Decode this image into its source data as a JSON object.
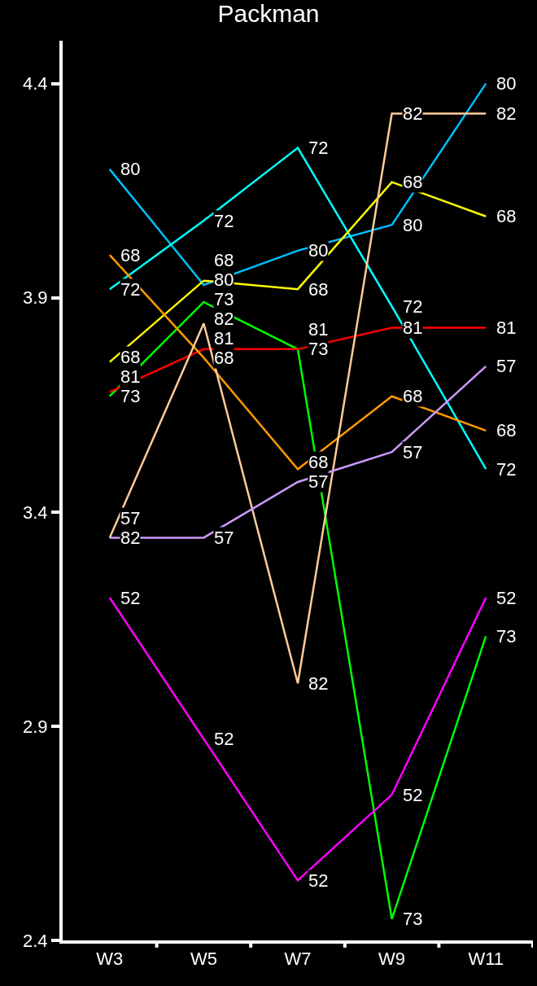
{
  "chart_data": {
    "type": "line",
    "title": "Packman",
    "categories": [
      "W3",
      "W5",
      "W7",
      "W9",
      "W11"
    ],
    "ylim": [
      2.4,
      4.5
    ],
    "yticks": [
      2.4,
      2.9,
      3.4,
      3.9,
      4.4
    ],
    "grid": false,
    "legend": false,
    "marker": "none",
    "line_style": "solid",
    "series": [
      {
        "name": "80",
        "color": "#00bfff",
        "values": [
          4.2,
          3.93,
          4.01,
          4.07,
          4.4
        ]
      },
      {
        "name": "72",
        "color": "#00ffff",
        "values": [
          3.92,
          4.08,
          4.25,
          3.88,
          3.5
        ]
      },
      {
        "name": "68",
        "color": "#ffff00",
        "values": [
          3.75,
          3.94,
          3.92,
          4.17,
          4.09
        ]
      },
      {
        "name": "73",
        "color": "#00ff00",
        "values": [
          3.67,
          3.89,
          3.78,
          2.45,
          3.11
        ]
      },
      {
        "name": "81",
        "color": "#ff0000",
        "values": [
          3.68,
          3.78,
          3.78,
          3.83,
          3.83
        ]
      },
      {
        "name": "68",
        "color": "#ff9900",
        "values": [
          4.0,
          3.76,
          3.5,
          3.67,
          3.59
        ]
      },
      {
        "name": "82",
        "color": "#ffcc99",
        "values": [
          3.34,
          3.84,
          3.0,
          4.33,
          4.33
        ]
      },
      {
        "name": "57",
        "color": "#cc99ff",
        "values": [
          3.34,
          3.34,
          3.47,
          3.54,
          3.74
        ]
      },
      {
        "name": "52",
        "color": "#ff00ff",
        "values": [
          3.2,
          2.87,
          2.54,
          2.74,
          3.2
        ]
      }
    ]
  }
}
